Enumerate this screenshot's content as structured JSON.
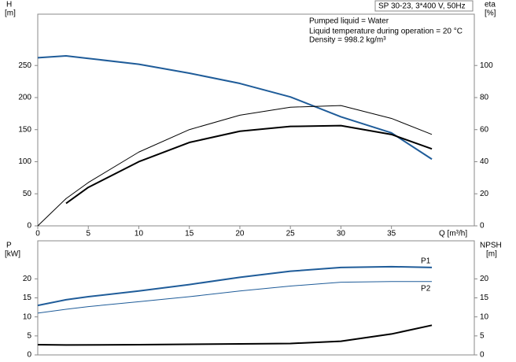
{
  "chart_data": [
    {
      "type": "line",
      "title": "SP 30-23, 3*400 V, 50Hz",
      "annotations": [
        "Pumped liquid = Water",
        "Liquid temperature during operation = 20 °C",
        "Density = 998.2 kg/m³"
      ],
      "xlabel": "Q [m³/h]",
      "ylabel": "H",
      "yunit": "[m]",
      "y2label": "eta",
      "y2unit": "[%]",
      "xlim": [
        0,
        43.2
      ],
      "xticks": [
        0,
        5,
        10,
        15,
        20,
        25,
        30,
        35
      ],
      "ylim": [
        0,
        330
      ],
      "yticks": [
        0,
        50,
        100,
        150,
        200,
        250
      ],
      "y2lim": [
        0,
        132
      ],
      "y2ticks": [
        0,
        20,
        40,
        60,
        80,
        100
      ],
      "series": [
        {
          "color": "#1f5c99",
          "stroke_width": 2,
          "x": [
            0,
            2.8,
            5,
            10,
            15,
            20,
            25,
            30,
            35,
            39
          ],
          "values": [
            262,
            265,
            261,
            252,
            238,
            222,
            201,
            170,
            145,
            104
          ]
        },
        {
          "color": "#000000",
          "stroke_width": 1,
          "axis": "y2",
          "x": [
            0,
            2.8,
            5,
            10,
            15,
            20,
            25,
            30,
            35,
            39
          ],
          "values": [
            0,
            17,
            27,
            46,
            60,
            69,
            74,
            75,
            67,
            57
          ]
        },
        {
          "color": "#000000",
          "stroke_width": 2,
          "axis": "y2",
          "x": [
            2.8,
            5,
            10,
            15,
            20,
            25,
            30,
            35,
            39
          ],
          "values": [
            14,
            24,
            40,
            52,
            59,
            62,
            62.5,
            57,
            48
          ]
        }
      ]
    },
    {
      "type": "line",
      "ylabel": "P",
      "yunit": "[kW]",
      "y2label": "NPSH",
      "y2unit": "[m]",
      "xlim": [
        0,
        43.2
      ],
      "ylim": [
        0,
        30
      ],
      "yticks": [
        0,
        5,
        10,
        15,
        20
      ],
      "y2lim": [
        0,
        30
      ],
      "y2ticks": [
        0,
        5,
        10,
        15,
        20
      ],
      "series": [
        {
          "name": "P1",
          "color": "#1f5c99",
          "stroke_width": 2,
          "x": [
            0,
            2.8,
            5,
            10,
            15,
            20,
            25,
            30,
            35,
            39
          ],
          "values": [
            13,
            14.5,
            15.3,
            16.8,
            18.5,
            20.4,
            22,
            23,
            23.2,
            23
          ]
        },
        {
          "name": "P2",
          "color": "#1f5c99",
          "stroke_width": 1,
          "x": [
            0,
            2.8,
            5,
            10,
            15,
            20,
            25,
            30,
            35,
            39
          ],
          "values": [
            11,
            12,
            12.7,
            14,
            15.3,
            16.8,
            18.1,
            19.1,
            19.3,
            19.3
          ]
        },
        {
          "color": "#000000",
          "stroke_width": 2,
          "axis": "y2",
          "x": [
            0,
            2.8,
            10,
            20,
            25,
            30,
            35,
            39
          ],
          "values": [
            2.7,
            2.6,
            2.7,
            2.9,
            3.0,
            3.6,
            5.5,
            7.8
          ]
        }
      ]
    }
  ]
}
